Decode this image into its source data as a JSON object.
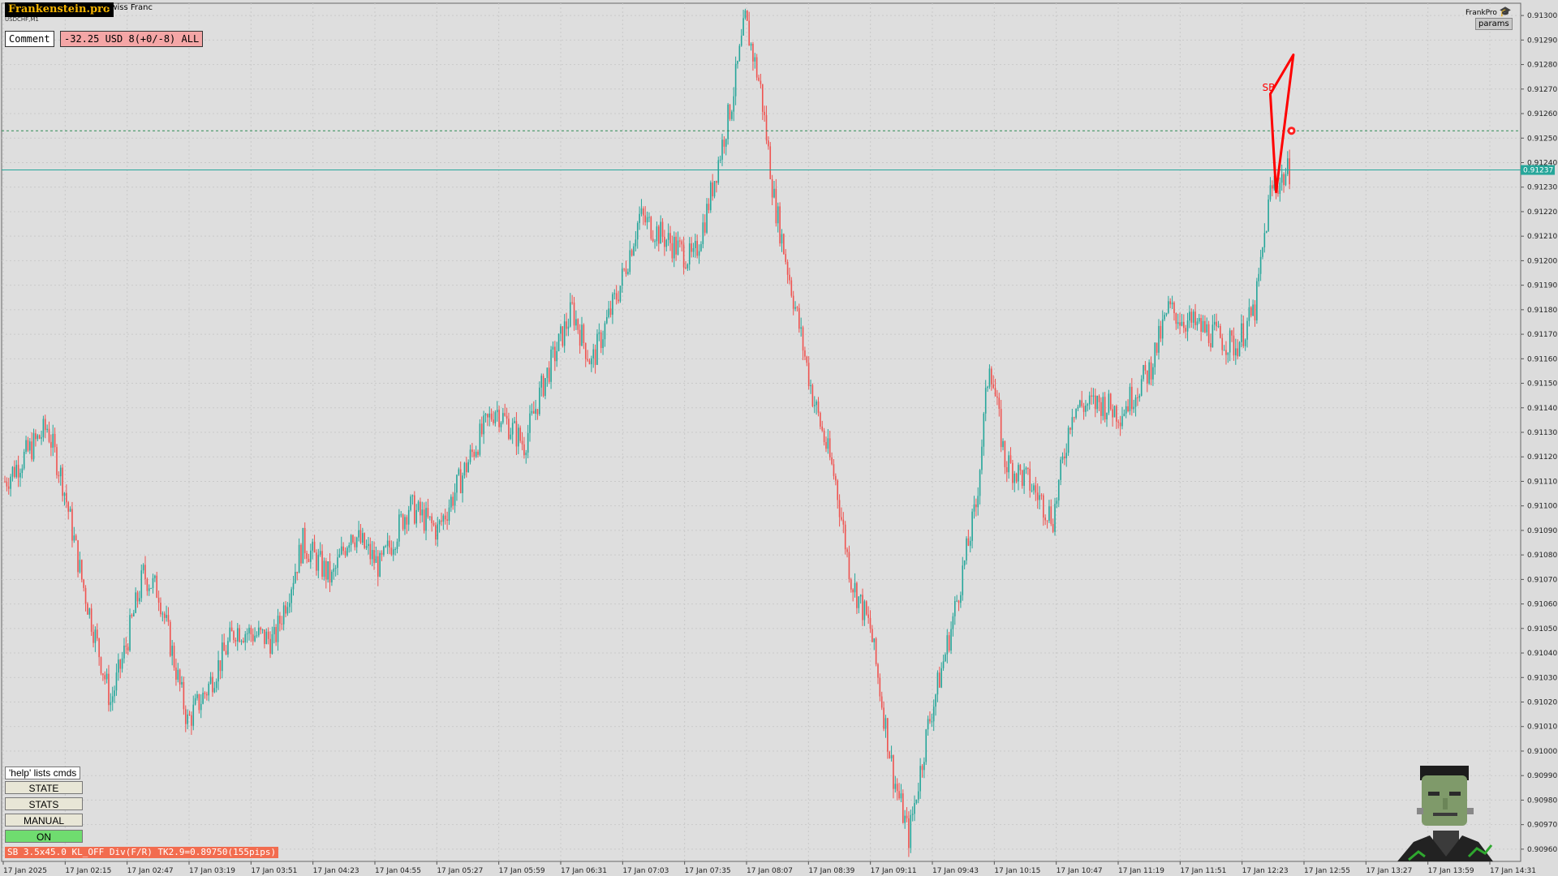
{
  "brand": "Frankenstein.pro",
  "chart_symbol": "Swiss Franc",
  "symbol_sub": "USDCHF,M1",
  "comment_label": "Comment",
  "pnl_text": "-32.25 USD 8(+0/-8) ALL",
  "frankpro_label": "FrankPro",
  "params_label": "params",
  "help_label": "'help' lists cmds",
  "buttons": {
    "state": "STATE",
    "stats": "STATS",
    "manual": "MANUAL",
    "on": "ON"
  },
  "status_badge": "SB",
  "status_text": "3.5x45.0 KL_OFF Div(F/R) TK2.9=0.89750(155pips)",
  "chart_markers": {
    "sb_label": "SB"
  },
  "chart_data": {
    "type": "candlestick",
    "title": "",
    "y_axis_labels": [
      "0.91300",
      "0.91290",
      "0.91280",
      "0.91270",
      "0.91260",
      "0.91250",
      "0.91240",
      "0.91230",
      "0.91220",
      "0.91210",
      "0.91200",
      "0.91190",
      "0.91180",
      "0.91170",
      "0.91160",
      "0.91150",
      "0.91140",
      "0.91130",
      "0.91120",
      "0.91110",
      "0.91100",
      "0.91090",
      "0.91080",
      "0.91070",
      "0.91060",
      "0.91050",
      "0.91040",
      "0.91030",
      "0.91020",
      "0.91010",
      "0.91000",
      "0.90990",
      "0.90980",
      "0.90970",
      "0.90960"
    ],
    "x_axis_labels": [
      "17 Jan 2025",
      "17 Jan 02:15",
      "17 Jan 02:47",
      "17 Jan 03:19",
      "17 Jan 03:51",
      "17 Jan 04:23",
      "17 Jan 04:55",
      "17 Jan 05:27",
      "17 Jan 05:59",
      "17 Jan 06:31",
      "17 Jan 07:03",
      "17 Jan 07:35",
      "17 Jan 08:07",
      "17 Jan 08:39",
      "17 Jan 09:11",
      "17 Jan 09:43",
      "17 Jan 10:15",
      "17 Jan 10:47",
      "17 Jan 11:19",
      "17 Jan 11:51",
      "17 Jan 12:23",
      "17 Jan 12:55",
      "17 Jan 13:27",
      "17 Jan 13:59",
      "17 Jan 14:31"
    ],
    "ylim": [
      0.90955,
      0.91305
    ],
    "current_price": 0.91237,
    "current_price_label": "0.91237",
    "level_line": 0.91253,
    "price_path": [
      {
        "i": 0,
        "p": 0.9111
      },
      {
        "i": 10,
        "p": 0.9112
      },
      {
        "i": 22,
        "p": 0.91132
      },
      {
        "i": 30,
        "p": 0.9111
      },
      {
        "i": 40,
        "p": 0.9107
      },
      {
        "i": 55,
        "p": 0.9102
      },
      {
        "i": 62,
        "p": 0.9104
      },
      {
        "i": 72,
        "p": 0.91072
      },
      {
        "i": 80,
        "p": 0.91065
      },
      {
        "i": 95,
        "p": 0.91012
      },
      {
        "i": 105,
        "p": 0.91025
      },
      {
        "i": 120,
        "p": 0.9105
      },
      {
        "i": 140,
        "p": 0.91045
      },
      {
        "i": 155,
        "p": 0.91085
      },
      {
        "i": 170,
        "p": 0.9107
      },
      {
        "i": 180,
        "p": 0.9109
      },
      {
        "i": 195,
        "p": 0.91075
      },
      {
        "i": 210,
        "p": 0.911
      },
      {
        "i": 225,
        "p": 0.9109
      },
      {
        "i": 245,
        "p": 0.91125
      },
      {
        "i": 255,
        "p": 0.9114
      },
      {
        "i": 270,
        "p": 0.91125
      },
      {
        "i": 280,
        "p": 0.9115
      },
      {
        "i": 295,
        "p": 0.9118
      },
      {
        "i": 305,
        "p": 0.91158
      },
      {
        "i": 320,
        "p": 0.9119
      },
      {
        "i": 330,
        "p": 0.91218
      },
      {
        "i": 345,
        "p": 0.91208
      },
      {
        "i": 358,
        "p": 0.912
      },
      {
        "i": 365,
        "p": 0.9122
      },
      {
        "i": 378,
        "p": 0.91265
      },
      {
        "i": 385,
        "p": 0.91298
      },
      {
        "i": 393,
        "p": 0.9127
      },
      {
        "i": 400,
        "p": 0.91225
      },
      {
        "i": 410,
        "p": 0.91185
      },
      {
        "i": 420,
        "p": 0.91145
      },
      {
        "i": 432,
        "p": 0.9111
      },
      {
        "i": 440,
        "p": 0.9107
      },
      {
        "i": 450,
        "p": 0.9105
      },
      {
        "i": 462,
        "p": 0.9099
      },
      {
        "i": 470,
        "p": 0.90965
      },
      {
        "i": 480,
        "p": 0.9101
      },
      {
        "i": 492,
        "p": 0.9105
      },
      {
        "i": 505,
        "p": 0.911
      },
      {
        "i": 512,
        "p": 0.9116
      },
      {
        "i": 520,
        "p": 0.91118
      },
      {
        "i": 532,
        "p": 0.9111
      },
      {
        "i": 545,
        "p": 0.91095
      },
      {
        "i": 555,
        "p": 0.9114
      },
      {
        "i": 570,
        "p": 0.91142
      },
      {
        "i": 580,
        "p": 0.91138
      },
      {
        "i": 595,
        "p": 0.91155
      },
      {
        "i": 605,
        "p": 0.9118
      },
      {
        "i": 615,
        "p": 0.91175
      },
      {
        "i": 628,
        "p": 0.9117
      },
      {
        "i": 640,
        "p": 0.91165
      },
      {
        "i": 650,
        "p": 0.9118
      },
      {
        "i": 658,
        "p": 0.91228
      },
      {
        "i": 668,
        "p": 0.91237
      }
    ],
    "overlay_triangle": [
      {
        "i": 658,
        "p": 0.91268
      },
      {
        "i": 661,
        "p": 0.91228
      },
      {
        "i": 670,
        "p": 0.91284
      }
    ],
    "sell_marker": {
      "i": 669,
      "p": 0.91253
    }
  }
}
